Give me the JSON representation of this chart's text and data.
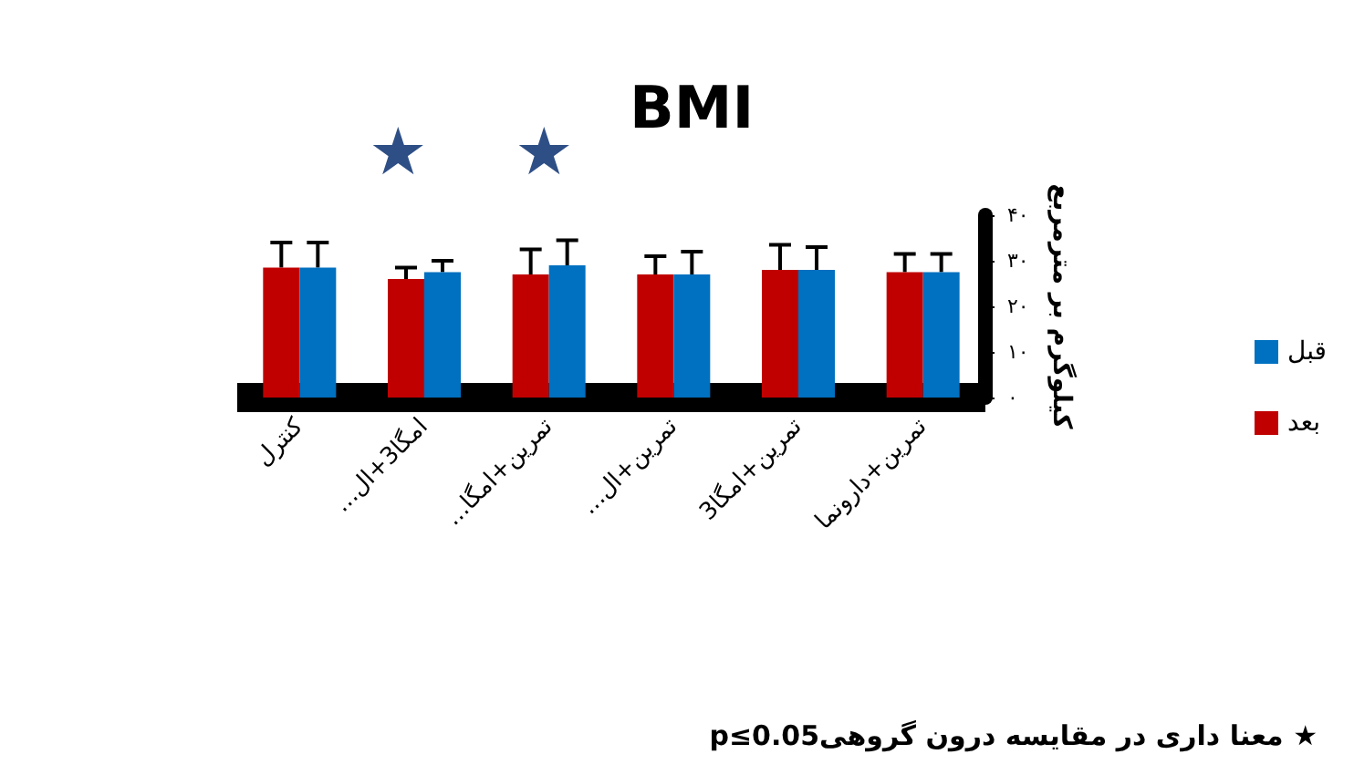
{
  "chart_data": {
    "type": "bar",
    "title": "BMI",
    "ylabel": "کیلوگرم بر مترمربع",
    "categories": [
      "کنترل",
      "امگا3+ال...",
      "تمرین+امگا...",
      "تمرین+ال...",
      "تمرین+امگا3",
      "تمرین+دارونما"
    ],
    "series": [
      {
        "name": "بعد",
        "color": "#c00000",
        "values": [
          28.5,
          26,
          27,
          27,
          28,
          27.5
        ],
        "errors": [
          5.5,
          2.5,
          5.5,
          4,
          5.5,
          4
        ]
      },
      {
        "name": "قبل",
        "color": "#0070c0",
        "values": [
          28.5,
          27.5,
          29,
          27,
          28,
          27.5
        ],
        "errors": [
          5.5,
          2.5,
          5.5,
          5,
          5,
          4
        ]
      }
    ],
    "ylim": [
      0,
      40
    ],
    "yticks": [
      {
        "value": 0,
        "label": "۰"
      },
      {
        "value": 10,
        "label": "۱۰"
      },
      {
        "value": 20,
        "label": "۲۰"
      },
      {
        "value": 30,
        "label": "۳۰"
      },
      {
        "value": 40,
        "label": "۴۰"
      }
    ],
    "legend": "right",
    "grid": false,
    "annotations": [
      "★",
      "★",
      "★ معنا داری در مقایسه درون گروهیp≤0.05"
    ]
  }
}
